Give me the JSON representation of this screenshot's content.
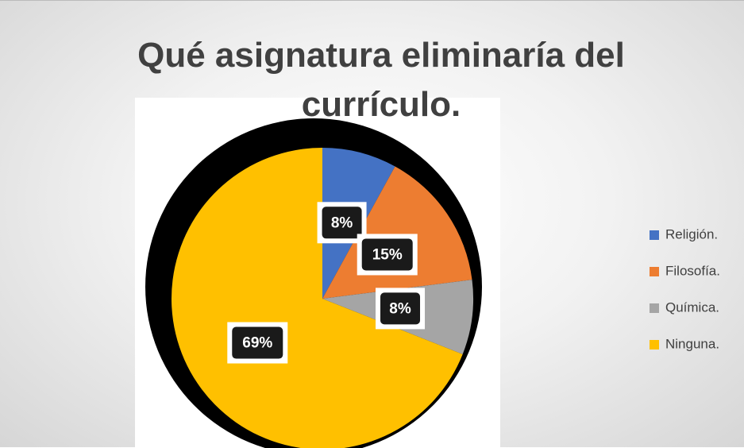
{
  "chart_data": {
    "type": "pie",
    "title": "Qué asignatura eliminaría del currículo.",
    "categories": [
      "Religión.",
      "Filosofía.",
      "Química.",
      "Ninguna."
    ],
    "values": [
      8,
      15,
      8,
      69
    ],
    "value_labels": [
      "8%",
      "15%",
      "8%",
      "69%"
    ],
    "colors": [
      "#4472c4",
      "#ed7d31",
      "#a5a5a5",
      "#ffc000"
    ],
    "legend": "right"
  }
}
